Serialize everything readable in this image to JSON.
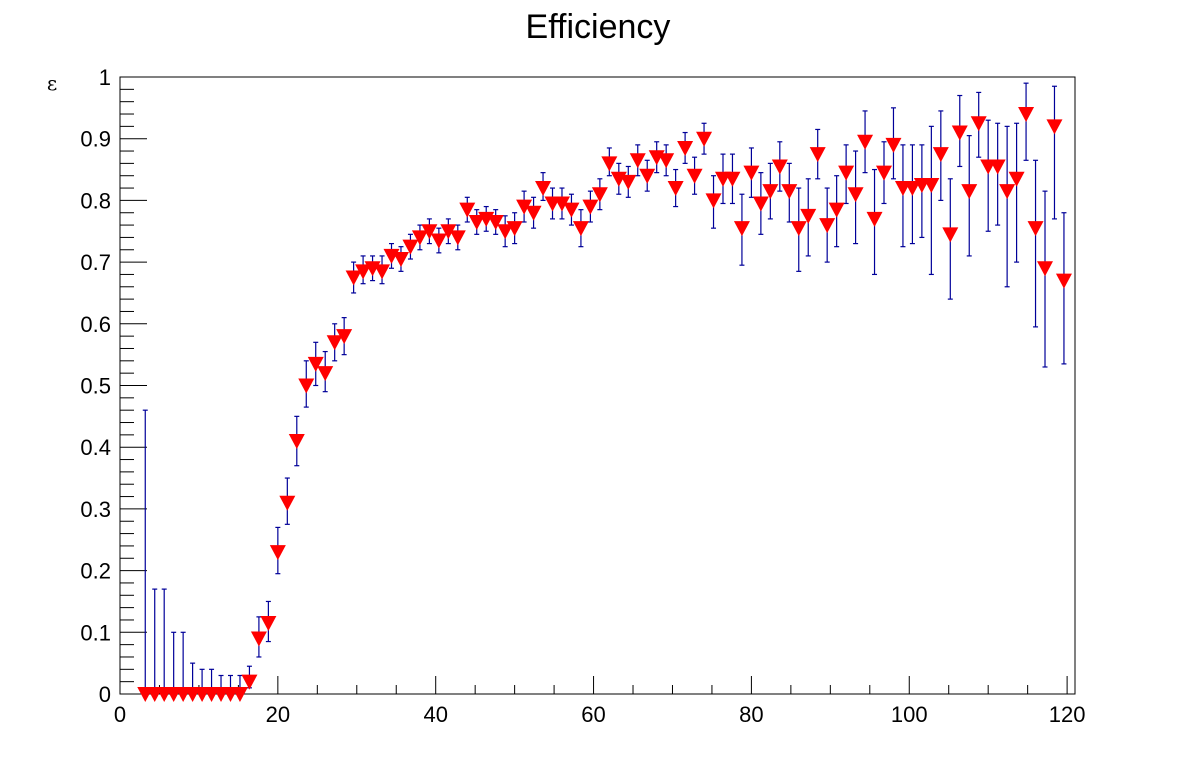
{
  "chart_data": {
    "type": "scatter",
    "title": "Efficiency",
    "xlabel": "",
    "ylabel": "ε",
    "xlim": [
      0,
      121
    ],
    "ylim": [
      0,
      1
    ],
    "grid": false,
    "x_tick_labels": [
      "0",
      "20",
      "40",
      "60",
      "80",
      "100",
      "120"
    ],
    "y_tick_labels": [
      "0",
      "0.1",
      "0.2",
      "0.3",
      "0.4",
      "0.5",
      "0.6",
      "0.7",
      "0.8",
      "0.9",
      "1"
    ],
    "colors": {
      "marker": "#ff0000",
      "error_bar": "#000099",
      "axis": "#000000"
    },
    "marker_shape": "triangle-down",
    "points": [
      {
        "x": 3.2,
        "y": 0.0,
        "yhi": 0.46
      },
      {
        "x": 4.4,
        "y": 0.0,
        "yhi": 0.17
      },
      {
        "x": 5.6,
        "y": 0.0,
        "yhi": 0.17
      },
      {
        "x": 6.8,
        "y": 0.0,
        "yhi": 0.1
      },
      {
        "x": 8.0,
        "y": 0.0,
        "yhi": 0.1
      },
      {
        "x": 9.2,
        "y": 0.0,
        "yhi": 0.05
      },
      {
        "x": 10.4,
        "y": 0.0,
        "yhi": 0.04
      },
      {
        "x": 11.6,
        "y": 0.0,
        "yhi": 0.04
      },
      {
        "x": 12.8,
        "y": 0.0,
        "yhi": 0.03
      },
      {
        "x": 14.0,
        "y": 0.0,
        "yhi": 0.03
      },
      {
        "x": 15.2,
        "y": 0.0,
        "yhi": 0.03
      },
      {
        "x": 16.4,
        "y": 0.02,
        "ylo": 0.01,
        "yhi": 0.045
      },
      {
        "x": 17.6,
        "y": 0.09,
        "ylo": 0.06,
        "yhi": 0.125
      },
      {
        "x": 18.8,
        "y": 0.115,
        "ylo": 0.085,
        "yhi": 0.15
      },
      {
        "x": 20.0,
        "y": 0.23,
        "ylo": 0.195,
        "yhi": 0.27
      },
      {
        "x": 21.2,
        "y": 0.31,
        "ylo": 0.275,
        "yhi": 0.35
      },
      {
        "x": 22.4,
        "y": 0.41,
        "ylo": 0.37,
        "yhi": 0.45
      },
      {
        "x": 23.6,
        "y": 0.5,
        "ylo": 0.465,
        "yhi": 0.54
      },
      {
        "x": 24.8,
        "y": 0.535,
        "ylo": 0.5,
        "yhi": 0.57
      },
      {
        "x": 26.0,
        "y": 0.52,
        "ylo": 0.49,
        "yhi": 0.555
      },
      {
        "x": 27.2,
        "y": 0.57,
        "ylo": 0.54,
        "yhi": 0.6
      },
      {
        "x": 28.4,
        "y": 0.58,
        "ylo": 0.55,
        "yhi": 0.61
      },
      {
        "x": 29.6,
        "y": 0.675,
        "ylo": 0.65,
        "yhi": 0.7
      },
      {
        "x": 30.8,
        "y": 0.685,
        "ylo": 0.665,
        "yhi": 0.71
      },
      {
        "x": 32.0,
        "y": 0.69,
        "ylo": 0.67,
        "yhi": 0.71
      },
      {
        "x": 33.2,
        "y": 0.685,
        "ylo": 0.665,
        "yhi": 0.71
      },
      {
        "x": 34.4,
        "y": 0.71,
        "ylo": 0.69,
        "yhi": 0.73
      },
      {
        "x": 35.6,
        "y": 0.705,
        "ylo": 0.685,
        "yhi": 0.725
      },
      {
        "x": 36.8,
        "y": 0.725,
        "ylo": 0.705,
        "yhi": 0.745
      },
      {
        "x": 38.0,
        "y": 0.74,
        "ylo": 0.72,
        "yhi": 0.76
      },
      {
        "x": 39.2,
        "y": 0.75,
        "ylo": 0.73,
        "yhi": 0.77
      },
      {
        "x": 40.4,
        "y": 0.735,
        "ylo": 0.715,
        "yhi": 0.755
      },
      {
        "x": 41.6,
        "y": 0.75,
        "ylo": 0.73,
        "yhi": 0.77
      },
      {
        "x": 42.8,
        "y": 0.74,
        "ylo": 0.72,
        "yhi": 0.76
      },
      {
        "x": 44.0,
        "y": 0.785,
        "ylo": 0.765,
        "yhi": 0.805
      },
      {
        "x": 45.2,
        "y": 0.765,
        "ylo": 0.745,
        "yhi": 0.785
      },
      {
        "x": 46.4,
        "y": 0.77,
        "ylo": 0.75,
        "yhi": 0.79
      },
      {
        "x": 47.6,
        "y": 0.765,
        "ylo": 0.745,
        "yhi": 0.785
      },
      {
        "x": 48.8,
        "y": 0.75,
        "ylo": 0.725,
        "yhi": 0.775
      },
      {
        "x": 50.0,
        "y": 0.755,
        "ylo": 0.73,
        "yhi": 0.78
      },
      {
        "x": 51.2,
        "y": 0.79,
        "ylo": 0.765,
        "yhi": 0.815
      },
      {
        "x": 52.4,
        "y": 0.78,
        "ylo": 0.755,
        "yhi": 0.805
      },
      {
        "x": 53.6,
        "y": 0.82,
        "ylo": 0.8,
        "yhi": 0.845
      },
      {
        "x": 54.8,
        "y": 0.795,
        "ylo": 0.77,
        "yhi": 0.82
      },
      {
        "x": 56.0,
        "y": 0.795,
        "ylo": 0.77,
        "yhi": 0.82
      },
      {
        "x": 57.2,
        "y": 0.785,
        "ylo": 0.76,
        "yhi": 0.81
      },
      {
        "x": 58.4,
        "y": 0.755,
        "ylo": 0.725,
        "yhi": 0.785
      },
      {
        "x": 59.6,
        "y": 0.79,
        "ylo": 0.765,
        "yhi": 0.815
      },
      {
        "x": 60.8,
        "y": 0.81,
        "ylo": 0.785,
        "yhi": 0.835
      },
      {
        "x": 62.0,
        "y": 0.86,
        "ylo": 0.84,
        "yhi": 0.885
      },
      {
        "x": 63.2,
        "y": 0.835,
        "ylo": 0.81,
        "yhi": 0.86
      },
      {
        "x": 64.4,
        "y": 0.83,
        "ylo": 0.805,
        "yhi": 0.855
      },
      {
        "x": 65.6,
        "y": 0.865,
        "ylo": 0.84,
        "yhi": 0.89
      },
      {
        "x": 66.8,
        "y": 0.84,
        "ylo": 0.815,
        "yhi": 0.865
      },
      {
        "x": 68.0,
        "y": 0.87,
        "ylo": 0.845,
        "yhi": 0.895
      },
      {
        "x": 69.2,
        "y": 0.865,
        "ylo": 0.84,
        "yhi": 0.89
      },
      {
        "x": 70.4,
        "y": 0.82,
        "ylo": 0.79,
        "yhi": 0.85
      },
      {
        "x": 71.6,
        "y": 0.885,
        "ylo": 0.86,
        "yhi": 0.91
      },
      {
        "x": 72.8,
        "y": 0.84,
        "ylo": 0.81,
        "yhi": 0.87
      },
      {
        "x": 74.0,
        "y": 0.9,
        "ylo": 0.875,
        "yhi": 0.925
      },
      {
        "x": 75.2,
        "y": 0.8,
        "ylo": 0.755,
        "yhi": 0.84
      },
      {
        "x": 76.4,
        "y": 0.835,
        "ylo": 0.795,
        "yhi": 0.875
      },
      {
        "x": 77.6,
        "y": 0.835,
        "ylo": 0.795,
        "yhi": 0.875
      },
      {
        "x": 78.8,
        "y": 0.755,
        "ylo": 0.695,
        "yhi": 0.81
      },
      {
        "x": 80.0,
        "y": 0.845,
        "ylo": 0.805,
        "yhi": 0.885
      },
      {
        "x": 81.2,
        "y": 0.795,
        "ylo": 0.745,
        "yhi": 0.845
      },
      {
        "x": 82.4,
        "y": 0.815,
        "ylo": 0.77,
        "yhi": 0.86
      },
      {
        "x": 83.6,
        "y": 0.855,
        "ylo": 0.815,
        "yhi": 0.895
      },
      {
        "x": 84.8,
        "y": 0.815,
        "ylo": 0.765,
        "yhi": 0.86
      },
      {
        "x": 86.0,
        "y": 0.755,
        "ylo": 0.685,
        "yhi": 0.82
      },
      {
        "x": 87.2,
        "y": 0.775,
        "ylo": 0.71,
        "yhi": 0.835
      },
      {
        "x": 88.4,
        "y": 0.875,
        "ylo": 0.835,
        "yhi": 0.915
      },
      {
        "x": 89.6,
        "y": 0.76,
        "ylo": 0.7,
        "yhi": 0.82
      },
      {
        "x": 90.8,
        "y": 0.785,
        "ylo": 0.725,
        "yhi": 0.84
      },
      {
        "x": 92.0,
        "y": 0.845,
        "ylo": 0.795,
        "yhi": 0.89
      },
      {
        "x": 93.2,
        "y": 0.81,
        "ylo": 0.73,
        "yhi": 0.88
      },
      {
        "x": 94.4,
        "y": 0.895,
        "ylo": 0.845,
        "yhi": 0.945
      },
      {
        "x": 95.6,
        "y": 0.77,
        "ylo": 0.68,
        "yhi": 0.85
      },
      {
        "x": 96.8,
        "y": 0.845,
        "ylo": 0.795,
        "yhi": 0.895
      },
      {
        "x": 98.0,
        "y": 0.89,
        "ylo": 0.835,
        "yhi": 0.95
      },
      {
        "x": 99.2,
        "y": 0.82,
        "ylo": 0.725,
        "yhi": 0.89
      },
      {
        "x": 100.4,
        "y": 0.82,
        "ylo": 0.73,
        "yhi": 0.89
      },
      {
        "x": 101.6,
        "y": 0.825,
        "ylo": 0.74,
        "yhi": 0.89
      },
      {
        "x": 102.8,
        "y": 0.825,
        "ylo": 0.68,
        "yhi": 0.92
      },
      {
        "x": 104.0,
        "y": 0.875,
        "ylo": 0.8,
        "yhi": 0.945
      },
      {
        "x": 105.2,
        "y": 0.745,
        "ylo": 0.64,
        "yhi": 0.835
      },
      {
        "x": 106.4,
        "y": 0.91,
        "ylo": 0.855,
        "yhi": 0.97
      },
      {
        "x": 107.6,
        "y": 0.815,
        "ylo": 0.71,
        "yhi": 0.905
      },
      {
        "x": 108.8,
        "y": 0.925,
        "ylo": 0.87,
        "yhi": 0.975
      },
      {
        "x": 110.0,
        "y": 0.855,
        "ylo": 0.75,
        "yhi": 0.93
      },
      {
        "x": 111.2,
        "y": 0.855,
        "ylo": 0.76,
        "yhi": 0.925
      },
      {
        "x": 112.4,
        "y": 0.815,
        "ylo": 0.66,
        "yhi": 0.92
      },
      {
        "x": 113.6,
        "y": 0.835,
        "ylo": 0.7,
        "yhi": 0.925
      },
      {
        "x": 114.8,
        "y": 0.94,
        "ylo": 0.865,
        "yhi": 0.99
      },
      {
        "x": 116.0,
        "y": 0.755,
        "ylo": 0.595,
        "yhi": 0.865
      },
      {
        "x": 117.2,
        "y": 0.69,
        "ylo": 0.53,
        "yhi": 0.815
      },
      {
        "x": 118.4,
        "y": 0.92,
        "ylo": 0.77,
        "yhi": 0.985
      },
      {
        "x": 119.6,
        "y": 0.67,
        "ylo": 0.535,
        "yhi": 0.78
      }
    ]
  }
}
